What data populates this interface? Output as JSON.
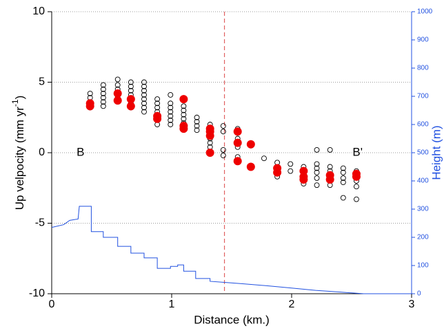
{
  "chart_data": {
    "type": "scatter",
    "xlabel": "Distance (km.)",
    "ylabel": {
      "text": "Up velpocity (mm yr",
      "superscript": "-1",
      "suffix": ")"
    },
    "y2label": "Height (m)",
    "xlim": [
      0,
      3
    ],
    "xticks": [
      0,
      1,
      2,
      3
    ],
    "ylim": [
      -10,
      10
    ],
    "yticks": [
      -10,
      -5,
      0,
      5,
      10
    ],
    "y2lim": [
      0,
      1000
    ],
    "y2ticks": [
      0,
      100,
      200,
      300,
      400,
      500,
      600,
      700,
      800,
      900,
      1000
    ],
    "y2color": "#2050e0",
    "grid": true,
    "vline": {
      "x": 1.44,
      "color": "#e06060"
    },
    "annotations": [
      {
        "text": "B",
        "x": 0.24,
        "y": 0
      },
      {
        "text": "B'",
        "x": 2.55,
        "y": 0
      }
    ],
    "series": [
      {
        "type": "scatter",
        "marker": "open",
        "color": "#000000",
        "x": [
          0.32,
          0.32,
          0.32,
          0.32,
          0.32,
          0.43,
          0.43,
          0.43,
          0.43,
          0.43,
          0.43,
          0.55,
          0.55,
          0.55,
          0.55,
          0.55,
          0.66,
          0.66,
          0.66,
          0.66,
          0.66,
          0.66,
          0.66,
          0.77,
          0.77,
          0.77,
          0.77,
          0.77,
          0.77,
          0.77,
          0.77,
          0.88,
          0.88,
          0.88,
          0.88,
          0.88,
          0.88,
          0.88,
          0.99,
          0.99,
          0.99,
          0.99,
          0.99,
          0.99,
          0.99,
          1.1,
          1.1,
          1.1,
          1.1,
          1.1,
          1.1,
          1.1,
          1.21,
          1.21,
          1.21,
          1.21,
          1.32,
          1.32,
          1.32,
          1.32,
          1.32,
          1.32,
          1.43,
          1.43,
          1.43,
          1.43,
          1.55,
          1.55,
          1.55,
          1.55,
          1.66,
          1.77,
          1.88,
          1.88,
          1.88,
          1.88,
          1.99,
          1.99,
          2.1,
          2.1,
          2.1,
          2.1,
          2.1,
          2.21,
          2.21,
          2.21,
          2.21,
          2.21,
          2.21,
          2.32,
          2.32,
          2.32,
          2.32,
          2.32,
          2.32,
          2.43,
          2.43,
          2.43,
          2.43,
          2.43,
          2.54,
          2.54,
          2.54,
          2.54,
          2.54
        ],
        "y": [
          4.2,
          3.9,
          3.6,
          3.4,
          3.2,
          4.8,
          4.5,
          4.2,
          3.9,
          3.6,
          3.3,
          5.2,
          4.8,
          4.5,
          4.2,
          3.9,
          5.0,
          4.7,
          4.4,
          4.1,
          3.8,
          3.5,
          3.2,
          5.0,
          4.7,
          4.4,
          4.1,
          3.8,
          3.5,
          3.2,
          2.9,
          3.8,
          3.5,
          3.2,
          2.9,
          2.6,
          2.3,
          2.0,
          4.1,
          3.5,
          3.2,
          2.9,
          2.6,
          2.3,
          2.0,
          3.8,
          3.3,
          3.0,
          2.7,
          2.4,
          2.1,
          1.8,
          2.5,
          2.2,
          1.9,
          1.6,
          2.0,
          1.7,
          1.3,
          1.0,
          0.7,
          0.4,
          1.9,
          1.5,
          0.2,
          -0.2,
          1.7,
          1.0,
          0.4,
          -0.3,
          0.5,
          -0.4,
          -0.7,
          -1.0,
          -1.4,
          -1.7,
          -0.8,
          -1.3,
          -1.0,
          -1.3,
          -1.6,
          -1.9,
          -2.2,
          0.2,
          -0.8,
          -1.1,
          -1.4,
          -1.8,
          -2.3,
          0.2,
          -1.0,
          -1.3,
          -1.6,
          -2.0,
          -2.3,
          -1.1,
          -1.4,
          -1.8,
          -2.1,
          -3.2,
          -1.3,
          -1.7,
          -2.0,
          -2.4,
          -3.3
        ]
      },
      {
        "type": "scatter",
        "marker": "filled",
        "color": "#ee0000",
        "x": [
          0.32,
          0.32,
          0.55,
          0.55,
          0.66,
          0.66,
          0.88,
          0.88,
          1.1,
          1.1,
          1.1,
          1.32,
          1.32,
          1.32,
          1.32,
          1.55,
          1.55,
          1.55,
          1.66,
          1.66,
          1.88,
          1.88,
          2.1,
          2.1,
          2.1,
          2.32,
          2.32,
          2.54,
          2.54
        ],
        "y": [
          3.5,
          3.3,
          4.2,
          3.7,
          3.8,
          3.3,
          2.6,
          2.4,
          3.8,
          1.9,
          1.7,
          1.7,
          1.5,
          1.2,
          0,
          1.5,
          0.7,
          -0.6,
          0.6,
          -1.0,
          -1.1,
          -1.4,
          -1.3,
          -1.7,
          -1.9,
          -1.6,
          -1.9,
          -1.5,
          -1.7
        ]
      },
      {
        "type": "line",
        "axis": "y2",
        "color": "#2050e0",
        "x": [
          0,
          0.1,
          0.15,
          0.22,
          0.23,
          0.33,
          0.33,
          0.43,
          0.43,
          0.55,
          0.55,
          0.66,
          0.66,
          0.77,
          0.77,
          0.88,
          0.88,
          0.99,
          0.99,
          1.05,
          1.05,
          1.1,
          1.1,
          1.2,
          1.2,
          1.32,
          1.32,
          1.45,
          1.6,
          1.8,
          2.0,
          2.2,
          2.4,
          2.6,
          3
        ],
        "y": [
          235,
          245,
          260,
          265,
          310,
          310,
          220,
          220,
          200,
          200,
          168,
          168,
          144,
          144,
          127,
          127,
          90,
          90,
          97,
          97,
          102,
          102,
          80,
          80,
          54,
          54,
          44,
          40,
          35,
          28,
          20,
          12,
          6,
          0,
          0
        ]
      }
    ]
  }
}
